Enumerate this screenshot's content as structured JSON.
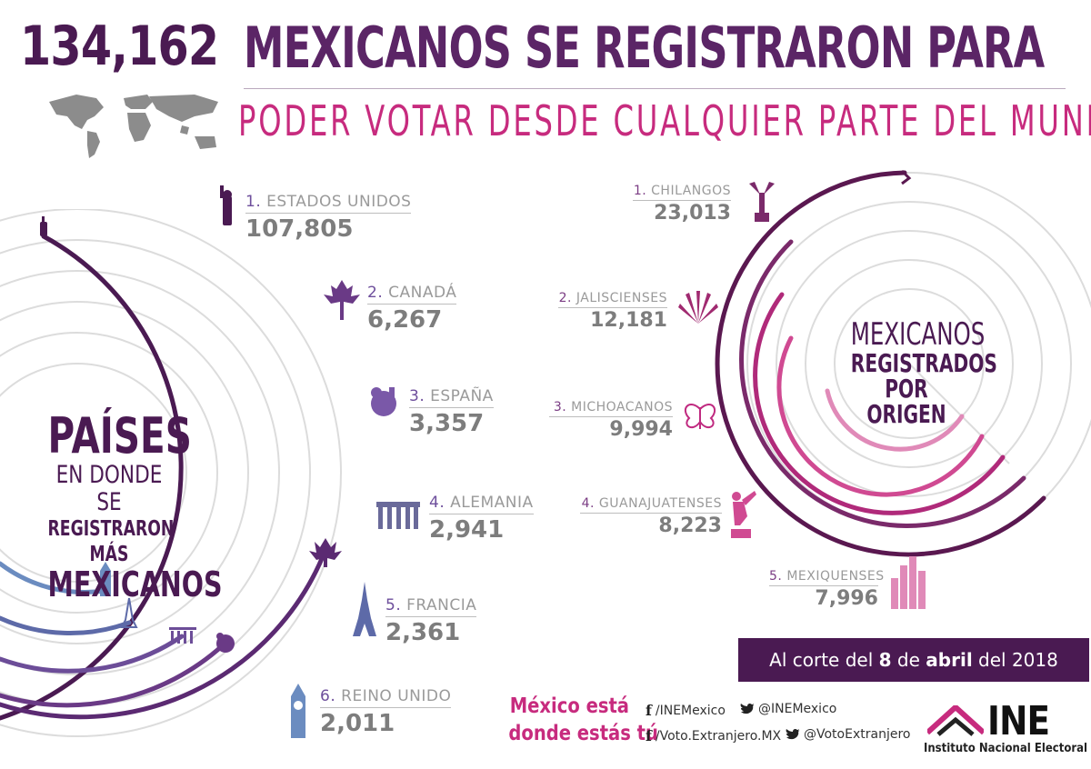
{
  "header": {
    "count": "134,162",
    "headline": "MEXICANOS SE REGISTRARON PARA",
    "subheadline": "PODER VOTAR DESDE CUALQUIER PARTE DEL MUNDO"
  },
  "countries_title": {
    "line1": "PAÍSES",
    "line2": "EN DONDE SE",
    "line3": "REGISTRARON MÁS",
    "line4": "MEXICANOS"
  },
  "countries": [
    {
      "rank": "1.",
      "name": "ESTADOS UNIDOS",
      "value": "107,805",
      "icon": "statue-of-liberty-icon"
    },
    {
      "rank": "2.",
      "name": "CANADÁ",
      "value": "6,267",
      "icon": "maple-leaf-icon"
    },
    {
      "rank": "3.",
      "name": "ESPAÑA",
      "value": "3,357",
      "icon": "lion-crest-icon"
    },
    {
      "rank": "4.",
      "name": "ALEMANIA",
      "value": "2,941",
      "icon": "brandenburg-gate-icon"
    },
    {
      "rank": "5.",
      "name": "FRANCIA",
      "value": "2,361",
      "icon": "eiffel-tower-icon"
    },
    {
      "rank": "6.",
      "name": "REINO UNIDO",
      "value": "2,011",
      "icon": "big-ben-icon"
    }
  ],
  "origin_title": {
    "line1": "MEXICANOS",
    "line2": "REGISTRADOS",
    "line3": "POR ORIGEN"
  },
  "origins": [
    {
      "rank": "1.",
      "name": "CHILANGOS",
      "value": "23,013",
      "icon": "angel-independence-icon"
    },
    {
      "rank": "2.",
      "name": "JALISCIENSES",
      "value": "12,181",
      "icon": "agave-icon"
    },
    {
      "rank": "3.",
      "name": "MICHOACANOS",
      "value": "9,994",
      "icon": "butterfly-icon"
    },
    {
      "rank": "4.",
      "name": "GUANAJUATENSES",
      "value": "8,223",
      "icon": "pipila-statue-icon"
    },
    {
      "rank": "5.",
      "name": "MEXIQUENSES",
      "value": "7,996",
      "icon": "skyline-icon"
    }
  ],
  "date_banner": {
    "prefix": "Al corte del",
    "day": "8",
    "mid": "de",
    "month": "abril",
    "suffix": "del 2018"
  },
  "slogan": {
    "line1": "México está",
    "line2": "donde estás tú"
  },
  "social": {
    "fb1": "/INEMexico",
    "tw1": "@INEMexico",
    "fb2": "/Voto.Extranjero.MX",
    "tw2": "@VotoExtranjero"
  },
  "logo": {
    "word": "INE",
    "subtitle": "Instituto Nacional Electoral"
  },
  "colors": {
    "dark_purple": "#4a1a52",
    "purple": "#5b2566",
    "magenta": "#c72b7e",
    "gray": "#7d7d7d"
  }
}
